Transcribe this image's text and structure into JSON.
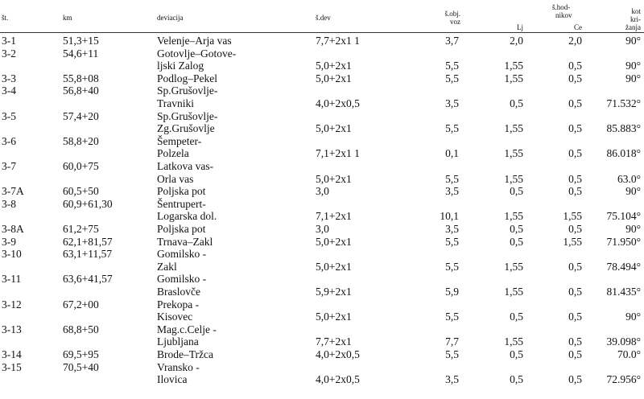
{
  "header": {
    "st": "št.",
    "km": "km",
    "deviacija": "deviacija",
    "sdev": "š.dev",
    "sobj_1": "š.obj.",
    "sobj_2": "voz",
    "shod_1": "š.hod-",
    "shod_2": "nikov",
    "lj": "Lj",
    "ce": "Ce",
    "kot_1": "kot",
    "kot_2": "kri-",
    "kot_3": "žanja"
  },
  "rows": [
    [
      "3-1",
      "51,3+15",
      "Velenje–Arja vas",
      "7,7+2x1 1",
      "3,7",
      "2,0",
      "2,0",
      "90°"
    ],
    [
      "3-2",
      "54,6+11",
      "Gotovlje–Gotove-",
      "",
      "",
      "",
      "",
      ""
    ],
    [
      "",
      "",
      "ljski Zalog",
      "5,0+2x1",
      "5,5",
      "1,55",
      "0,5",
      "90°"
    ],
    [
      "3-3",
      "55,8+08",
      "Podlog–Pekel",
      "5,0+2x1",
      "5,5",
      "1,55",
      "0,5",
      "90°"
    ],
    [
      "3-4",
      "56,8+40",
      "Sp.Grušovlje-",
      "",
      "",
      "",
      "",
      ""
    ],
    [
      "",
      "",
      "Travniki",
      "4,0+2x0,5",
      "3,5",
      "0,5",
      "0,5",
      "71.532°"
    ],
    [
      "3-5",
      "57,4+20",
      "Sp.Grušovlje-",
      "",
      "",
      "",
      "",
      ""
    ],
    [
      "",
      "",
      "Zg.Grušovlje",
      "5,0+2x1",
      "5,5",
      "1,55",
      "0,5",
      "85.883°"
    ],
    [
      "3-6",
      "58,8+20",
      "Šempeter-",
      "",
      "",
      "",
      "",
      ""
    ],
    [
      "",
      "",
      "Polzela",
      "7,1+2x1 1",
      "0,1",
      "1,55",
      "0,5",
      "86.018°"
    ],
    [
      "3-7",
      "60,0+75",
      "Latkova vas-",
      "",
      "",
      "",
      "",
      ""
    ],
    [
      "",
      "",
      "Orla vas",
      "5,0+2x1",
      "5,5",
      "1,55",
      "0,5",
      "63.0°"
    ],
    [
      "3-7A",
      "60,5+50",
      "Poljska pot",
      "3,0",
      "3,5",
      "0,5",
      "0,5",
      "90°"
    ],
    [
      "3-8",
      "60,9+61,30",
      "Šentrupert-",
      "",
      "",
      "",
      "",
      ""
    ],
    [
      "",
      "",
      "Logarska dol.",
      "7,1+2x1",
      "10,1",
      "1,55",
      "1,55",
      "75.104°"
    ],
    [
      "3-8A",
      "61,2+75",
      "Poljska pot",
      "3,0",
      "3,5",
      "0,5",
      "0,5",
      "90°"
    ],
    [
      "3-9",
      "62,1+81,57",
      "Trnava–Zakl",
      "5,0+2x1",
      "5,5",
      "0,5",
      "1,55",
      "71.950°"
    ],
    [
      "3-10",
      "63,1+11,57",
      "Gomilsko -",
      "",
      "",
      "",
      "",
      ""
    ],
    [
      "",
      "",
      "Zakl",
      "5,0+2x1",
      "5,5",
      "1,55",
      "0,5",
      "78.494°"
    ],
    [
      "3-11",
      "63,6+41,57",
      "Gomilsko -",
      "",
      "",
      "",
      "",
      ""
    ],
    [
      "",
      "",
      "Braslovče",
      "5,9+2x1",
      "5,9",
      "1,55",
      "0,5",
      "81.435°"
    ],
    [
      "3-12",
      "67,2+00",
      "Prekopa -",
      "",
      "",
      "",
      "",
      ""
    ],
    [
      "",
      "",
      "Kisovec",
      "5,0+2x1",
      "5,5",
      "0,5",
      "0,5",
      "90°"
    ],
    [
      "3-13",
      "68,8+50",
      "Mag.c.Celje -",
      "",
      "",
      "",
      "",
      ""
    ],
    [
      "",
      "",
      "Ljubljana",
      "7,7+2x1",
      "7,7",
      "1,55",
      "0,5",
      "39.098°"
    ],
    [
      "3-14",
      "69,5+95",
      "Brode–Tržca",
      "4,0+2x0,5",
      "5,5",
      "0,5",
      "0,5",
      "70.0°"
    ],
    [
      "3-15",
      "70,5+40",
      "Vransko -",
      "",
      "",
      "",
      "",
      ""
    ],
    [
      "",
      "",
      "Ilovica",
      "4,0+2x0,5",
      "3,5",
      "0,5",
      "0,5",
      "72.956°"
    ]
  ]
}
